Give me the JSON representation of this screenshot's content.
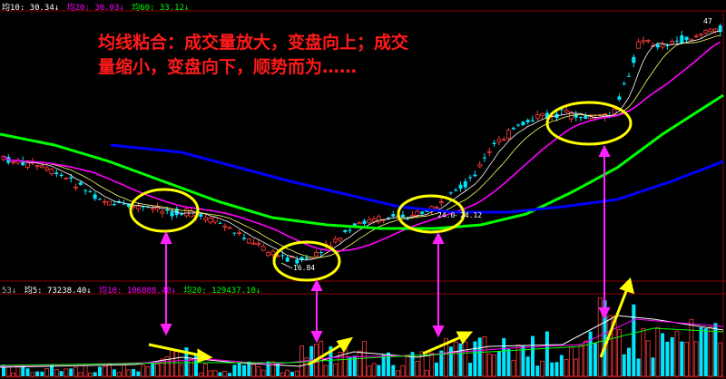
{
  "header": {
    "ma_legend": [
      {
        "label": "均10: 30.34↓",
        "color": "#ffffff"
      },
      {
        "label": "均20: 30.03↓",
        "color": "#ff00ff"
      },
      {
        "label": "均60: 33.12↓",
        "color": "#00ff00"
      }
    ],
    "vol_legend": [
      {
        "label": "53↓",
        "color": "#aaaaaa"
      },
      {
        "label": "均5: 73238.40↓",
        "color": "#ffffff"
      },
      {
        "label": "均10: 106888.40↓",
        "color": "#ff00ff"
      },
      {
        "label": "均20: 129437.10↓",
        "color": "#00ff00"
      }
    ],
    "corner_mark": "47"
  },
  "annotation": {
    "line1": "均线粘合：成交量放大，变盘向上；成交",
    "line2": "量缩小，变盘向下，顺势而为……"
  },
  "labels": {
    "low_price": "16.84",
    "mid_price": "24.0",
    "mid_price2": "24.12"
  },
  "colors": {
    "up": "#ff3b3b",
    "down": "#00e6ff",
    "ma10": "#ffffff",
    "ma20": "#ff00ff",
    "ma60": "#00ff00",
    "ma120": "#0000ff",
    "arrow_yellow": "#ffff00",
    "highlight_circle": "#ffff00",
    "connector": "#ff22ff"
  },
  "chart_data": {
    "type": "candlestick-with-volume",
    "highlight_zones": [
      "consolidation-1",
      "low-16.84",
      "breakout-24",
      "consolidation-top"
    ],
    "notes": "Price and volume values not printed on axes; series shapes are qualitative."
  }
}
